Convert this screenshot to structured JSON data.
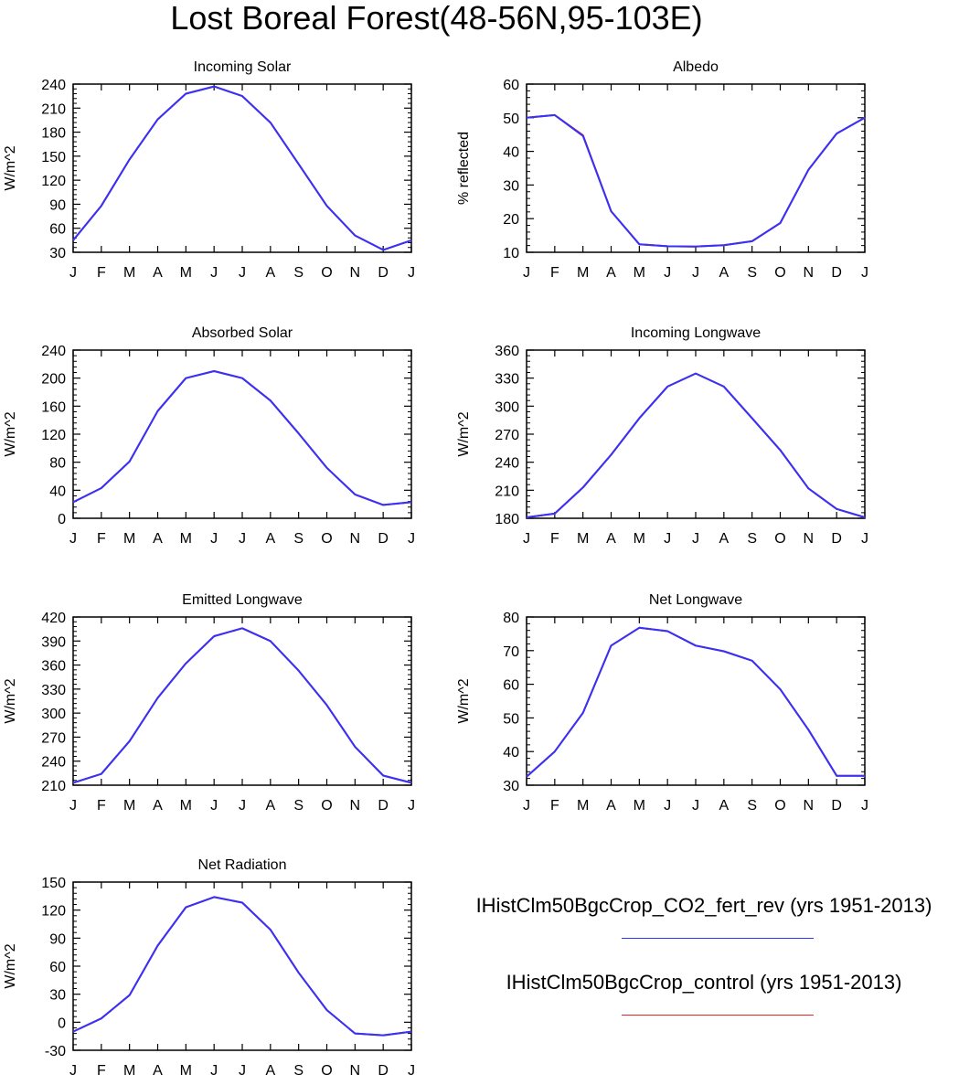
{
  "title": "Lost Boreal Forest(48-56N,95-103E)",
  "legend": [
    {
      "name": "IHistClm50BgcCrop_CO2_fert_rev (yrs 1951-2013)",
      "color": "#3333ff"
    },
    {
      "name": "IHistClm50BgcCrop_control (yrs 1951-2013)",
      "color": "#ee2222"
    }
  ],
  "chart_data": [
    {
      "type": "line",
      "title": "Incoming Solar",
      "ylabel": "W/m^2",
      "categories": [
        "J",
        "F",
        "M",
        "A",
        "M",
        "J",
        "J",
        "A",
        "S",
        "O",
        "N",
        "D",
        "J"
      ],
      "ylim": [
        30,
        240
      ],
      "yticks": [
        30,
        60,
        90,
        120,
        150,
        180,
        210,
        240
      ],
      "series": [
        {
          "name": "IHistClm50BgcCrop_control (yrs 1951-2013)",
          "color": "#ee2222",
          "values": [
            45,
            88,
            146,
            196,
            228,
            237,
            225,
            192,
            140,
            88,
            51,
            33,
            45
          ]
        },
        {
          "name": "IHistClm50BgcCrop_CO2_fert_rev (yrs 1951-2013)",
          "color": "#3333ff",
          "values": [
            45,
            88,
            146,
            196,
            228,
            237,
            225,
            192,
            140,
            88,
            51,
            33,
            45
          ]
        }
      ]
    },
    {
      "type": "line",
      "title": "Albedo",
      "ylabel": "% reflected",
      "categories": [
        "J",
        "F",
        "M",
        "A",
        "M",
        "J",
        "J",
        "A",
        "S",
        "O",
        "N",
        "D",
        "J"
      ],
      "ylim": [
        10,
        60
      ],
      "yticks": [
        10,
        20,
        30,
        40,
        50,
        60
      ],
      "series": [
        {
          "name": "IHistClm50BgcCrop_control (yrs 1951-2013)",
          "color": "#ee2222",
          "values": [
            50,
            50.8,
            44.8,
            22.2,
            12.4,
            11.8,
            11.7,
            12.1,
            13.3,
            18.7,
            34.5,
            45.3,
            50
          ]
        },
        {
          "name": "IHistClm50BgcCrop_CO2_fert_rev (yrs 1951-2013)",
          "color": "#3333ff",
          "values": [
            50,
            50.8,
            44.6,
            22.2,
            12.4,
            11.8,
            11.7,
            12.1,
            13.3,
            18.7,
            34.5,
            45.3,
            50
          ]
        }
      ]
    },
    {
      "type": "line",
      "title": "Absorbed Solar",
      "ylabel": "W/m^2",
      "categories": [
        "J",
        "F",
        "M",
        "A",
        "M",
        "J",
        "J",
        "A",
        "S",
        "O",
        "N",
        "D",
        "J"
      ],
      "ylim": [
        0,
        240
      ],
      "yticks": [
        0,
        40,
        80,
        120,
        160,
        200,
        240
      ],
      "series": [
        {
          "name": "IHistClm50BgcCrop_control (yrs 1951-2013)",
          "color": "#ee2222",
          "values": [
            23,
            43,
            81,
            153,
            200,
            210,
            200,
            168,
            121,
            72,
            34,
            19,
            23
          ]
        },
        {
          "name": "IHistClm50BgcCrop_CO2_fert_rev (yrs 1951-2013)",
          "color": "#3333ff",
          "values": [
            23,
            43,
            81,
            153,
            200,
            210,
            200,
            168,
            121,
            72,
            34,
            19,
            23
          ]
        }
      ]
    },
    {
      "type": "line",
      "title": "Incoming Longwave",
      "ylabel": "W/m^2",
      "categories": [
        "J",
        "F",
        "M",
        "A",
        "M",
        "J",
        "J",
        "A",
        "S",
        "O",
        "N",
        "D",
        "J"
      ],
      "ylim": [
        180,
        360
      ],
      "yticks": [
        180,
        210,
        240,
        270,
        300,
        330,
        360
      ],
      "series": [
        {
          "name": "IHistClm50BgcCrop_control (yrs 1951-2013)",
          "color": "#ee2222",
          "values": [
            181,
            185,
            213,
            248,
            287,
            321,
            335,
            321,
            287,
            253,
            212,
            190,
            181
          ]
        },
        {
          "name": "IHistClm50BgcCrop_CO2_fert_rev (yrs 1951-2013)",
          "color": "#3333ff",
          "values": [
            181,
            185,
            213,
            248,
            287,
            321,
            335,
            321,
            287,
            253,
            212,
            190,
            181
          ]
        }
      ]
    },
    {
      "type": "line",
      "title": "Emitted Longwave",
      "ylabel": "W/m^2",
      "categories": [
        "J",
        "F",
        "M",
        "A",
        "M",
        "J",
        "J",
        "A",
        "S",
        "O",
        "N",
        "D",
        "J"
      ],
      "ylim": [
        210,
        420
      ],
      "yticks": [
        210,
        240,
        270,
        300,
        330,
        360,
        390,
        420
      ],
      "series": [
        {
          "name": "IHistClm50BgcCrop_control (yrs 1951-2013)",
          "color": "#ee2222",
          "values": [
            213,
            224,
            265,
            319,
            362,
            396,
            406,
            390,
            353,
            310,
            258,
            222,
            213
          ]
        },
        {
          "name": "IHistClm50BgcCrop_CO2_fert_rev (yrs 1951-2013)",
          "color": "#3333ff",
          "values": [
            213,
            224,
            265,
            319,
            362,
            396,
            406,
            390,
            353,
            310,
            258,
            222,
            213
          ]
        }
      ]
    },
    {
      "type": "line",
      "title": "Net Longwave",
      "ylabel": "W/m^2",
      "categories": [
        "J",
        "F",
        "M",
        "A",
        "M",
        "J",
        "J",
        "A",
        "S",
        "O",
        "N",
        "D",
        "J"
      ],
      "ylim": [
        30,
        80
      ],
      "yticks": [
        30,
        40,
        50,
        60,
        70,
        80
      ],
      "series": [
        {
          "name": "IHistClm50BgcCrop_control (yrs 1951-2013)",
          "color": "#ee2222",
          "values": [
            32.5,
            40,
            51.5,
            71.5,
            76.8,
            75.8,
            71.5,
            69.8,
            67,
            58.5,
            46.5,
            32.8,
            32.8
          ]
        },
        {
          "name": "IHistClm50BgcCrop_CO2_fert_rev (yrs 1951-2013)",
          "color": "#3333ff",
          "values": [
            32.5,
            40,
            51.5,
            71.5,
            76.8,
            75.8,
            71.5,
            69.8,
            67,
            58.5,
            46.5,
            32.8,
            32.8
          ]
        }
      ]
    },
    {
      "type": "line",
      "title": "Net Radiation",
      "ylabel": "W/m^2",
      "categories": [
        "J",
        "F",
        "M",
        "A",
        "M",
        "J",
        "J",
        "A",
        "S",
        "O",
        "N",
        "D",
        "J"
      ],
      "ylim": [
        -30,
        150
      ],
      "yticks": [
        -30,
        0,
        30,
        60,
        90,
        120,
        150
      ],
      "series": [
        {
          "name": "IHistClm50BgcCrop_control (yrs 1951-2013)",
          "color": "#ee2222",
          "values": [
            -10,
            4,
            29,
            82,
            123,
            134,
            128,
            99,
            53,
            13,
            -12,
            -14,
            -10
          ]
        },
        {
          "name": "IHistClm50BgcCrop_CO2_fert_rev (yrs 1951-2013)",
          "color": "#3333ff",
          "values": [
            -10,
            4,
            29,
            82,
            123,
            134,
            128,
            99,
            53,
            13,
            -12,
            -14,
            -10
          ]
        }
      ]
    }
  ]
}
